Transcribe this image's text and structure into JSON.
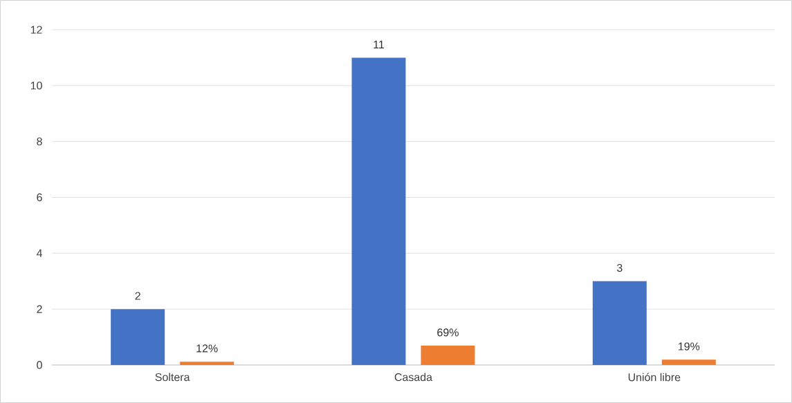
{
  "chart_data": {
    "type": "bar",
    "categories": [
      "Soltera",
      "Casada",
      "Unión libre"
    ],
    "series": [
      {
        "color": "#4472c4",
        "values": [
          2,
          11,
          3
        ],
        "value_labels": [
          "2",
          "11",
          "3"
        ]
      },
      {
        "color": "#ed7d31",
        "values": [
          0.12,
          0.69,
          0.19
        ],
        "value_labels": [
          "12%",
          "69%",
          "19%"
        ]
      }
    ],
    "ylim": [
      0,
      12
    ],
    "yticks": [
      0,
      2,
      4,
      6,
      8,
      10,
      12
    ],
    "grid": "y"
  }
}
